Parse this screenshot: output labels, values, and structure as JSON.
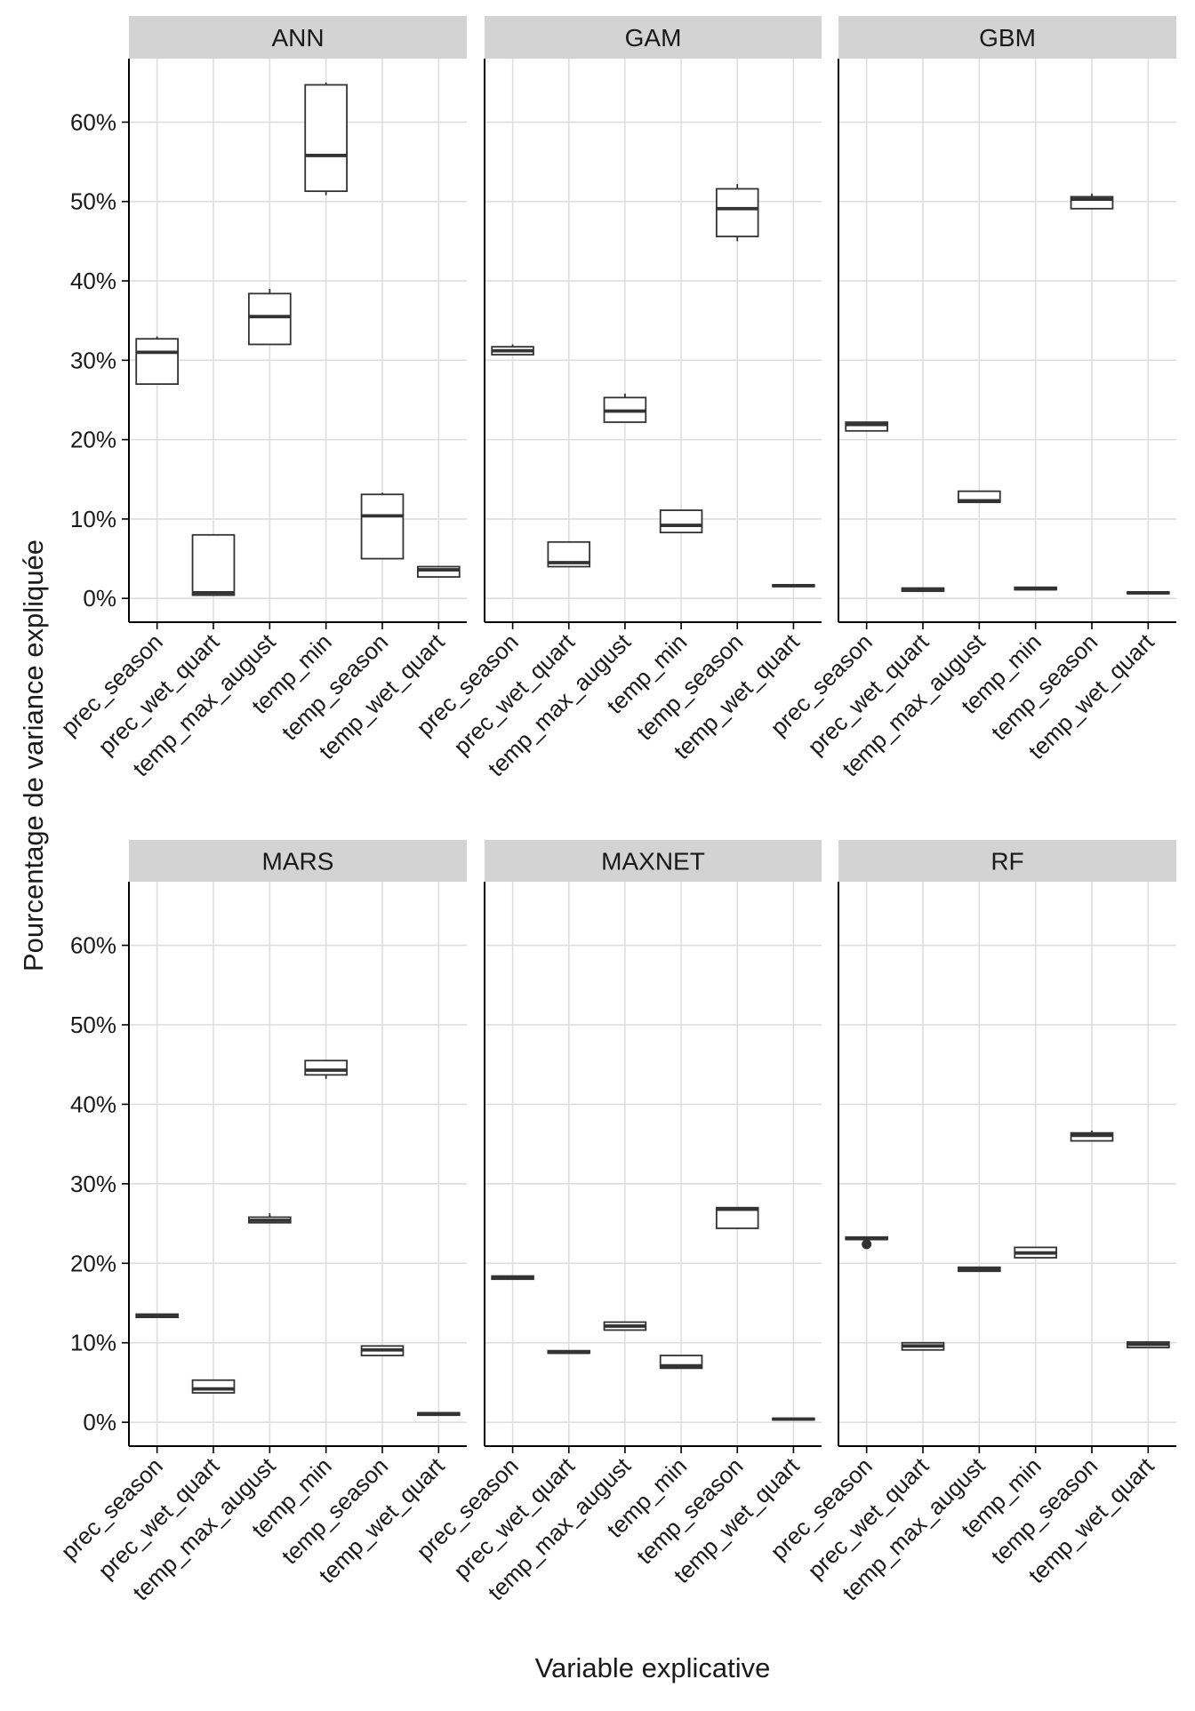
{
  "chart_data": {
    "type": "boxplot",
    "facet_layout": "2 rows x 3 columns",
    "ylabel": "Pourcentage de variance expliquée",
    "xlabel": "Variable explicative",
    "ylim": [
      -3,
      68
    ],
    "y_ticks": [
      0,
      10,
      20,
      30,
      40,
      50,
      60
    ],
    "y_tick_labels": [
      "0%",
      "10%",
      "20%",
      "30%",
      "40%",
      "50%",
      "60%"
    ],
    "categories": [
      "prec_season",
      "prec_wet_quart",
      "temp_max_august",
      "temp_min",
      "temp_season",
      "temp_wet_quart"
    ],
    "grid": true,
    "colors": {
      "strip": "#d3d3d3",
      "grid": "#dedede",
      "box": "#333333",
      "axis": "#000000"
    },
    "panels": [
      {
        "title": "ANN",
        "boxes": [
          {
            "min": 27,
            "q1": 27,
            "median": 31,
            "q3": 32.7,
            "max": 33
          },
          {
            "min": 0.4,
            "q1": 0.4,
            "median": 0.7,
            "q3": 8,
            "max": 8
          },
          {
            "min": 32,
            "q1": 32,
            "median": 35.5,
            "q3": 38.4,
            "max": 39
          },
          {
            "min": 50.8,
            "q1": 51.3,
            "median": 55.8,
            "q3": 64.7,
            "max": 65
          },
          {
            "min": 5,
            "q1": 5,
            "median": 10.4,
            "q3": 13.1,
            "max": 13.3
          },
          {
            "min": 2.7,
            "q1": 2.7,
            "median": 3.6,
            "q3": 4,
            "max": 4
          }
        ]
      },
      {
        "title": "GAM",
        "boxes": [
          {
            "min": 30.7,
            "q1": 30.7,
            "median": 31.2,
            "q3": 31.7,
            "max": 32
          },
          {
            "min": 4,
            "q1": 4,
            "median": 4.5,
            "q3": 7.1,
            "max": 7.1
          },
          {
            "min": 22.2,
            "q1": 22.2,
            "median": 23.6,
            "q3": 25.3,
            "max": 25.8
          },
          {
            "min": 8.3,
            "q1": 8.3,
            "median": 9.2,
            "q3": 11.1,
            "max": 11.1
          },
          {
            "min": 45,
            "q1": 45.6,
            "median": 49.1,
            "q3": 51.6,
            "max": 52.2
          },
          {
            "min": 1.5,
            "q1": 1.5,
            "median": 1.6,
            "q3": 1.7,
            "max": 1.7
          }
        ]
      },
      {
        "title": "GBM",
        "boxes": [
          {
            "min": 21.1,
            "q1": 21.1,
            "median": 21.9,
            "q3": 22.2,
            "max": 22.2
          },
          {
            "min": 0.9,
            "q1": 0.9,
            "median": 1.1,
            "q3": 1.3,
            "max": 1.3
          },
          {
            "min": 12.1,
            "q1": 12.1,
            "median": 12.3,
            "q3": 13.5,
            "max": 13.5
          },
          {
            "min": 1.1,
            "q1": 1.1,
            "median": 1.2,
            "q3": 1.4,
            "max": 1.4
          },
          {
            "min": 49,
            "q1": 49.1,
            "median": 50.3,
            "q3": 50.6,
            "max": 51
          },
          {
            "min": 0.6,
            "q1": 0.6,
            "median": 0.7,
            "q3": 0.8,
            "max": 0.8
          }
        ]
      },
      {
        "title": "MARS",
        "boxes": [
          {
            "min": 13.2,
            "q1": 13.2,
            "median": 13.4,
            "q3": 13.6,
            "max": 13.6
          },
          {
            "min": 3.7,
            "q1": 3.7,
            "median": 4.2,
            "q3": 5.3,
            "max": 5.3
          },
          {
            "min": 25.1,
            "q1": 25.1,
            "median": 25.4,
            "q3": 25.8,
            "max": 26.3
          },
          {
            "min": 43.2,
            "q1": 43.7,
            "median": 44.3,
            "q3": 45.5,
            "max": 45.5
          },
          {
            "min": 8.4,
            "q1": 8.4,
            "median": 9.1,
            "q3": 9.6,
            "max": 9.6
          },
          {
            "min": 0.9,
            "q1": 0.9,
            "median": 1,
            "q3": 1.2,
            "max": 1.2
          }
        ]
      },
      {
        "title": "MAXNET",
        "boxes": [
          {
            "min": 18,
            "q1": 18,
            "median": 18.2,
            "q3": 18.4,
            "max": 18.4
          },
          {
            "min": 8.7,
            "q1": 8.7,
            "median": 8.8,
            "q3": 9,
            "max": 9
          },
          {
            "min": 11.6,
            "q1": 11.6,
            "median": 12.1,
            "q3": 12.6,
            "max": 12.6
          },
          {
            "min": 6.8,
            "q1": 6.8,
            "median": 7.1,
            "q3": 8.4,
            "max": 8.4
          },
          {
            "min": 24.4,
            "q1": 24.4,
            "median": 26.8,
            "q3": 27,
            "max": 27
          },
          {
            "min": 0.3,
            "q1": 0.3,
            "median": 0.4,
            "q3": 0.5,
            "max": 0.5
          }
        ]
      },
      {
        "title": "RF",
        "boxes": [
          {
            "min": 23,
            "q1": 23,
            "median": 23.1,
            "q3": 23.3,
            "max": 23.3,
            "outliers": [
              22.4
            ]
          },
          {
            "min": 9.1,
            "q1": 9.1,
            "median": 9.6,
            "q3": 10,
            "max": 10
          },
          {
            "min": 19,
            "q1": 19,
            "median": 19.2,
            "q3": 19.5,
            "max": 19.5
          },
          {
            "min": 20.7,
            "q1": 20.7,
            "median": 21.3,
            "q3": 22,
            "max": 22
          },
          {
            "min": 35.4,
            "q1": 35.4,
            "median": 36.1,
            "q3": 36.4,
            "max": 36.7
          },
          {
            "min": 9.4,
            "q1": 9.4,
            "median": 9.8,
            "q3": 10.1,
            "max": 10.1
          }
        ]
      }
    ]
  }
}
